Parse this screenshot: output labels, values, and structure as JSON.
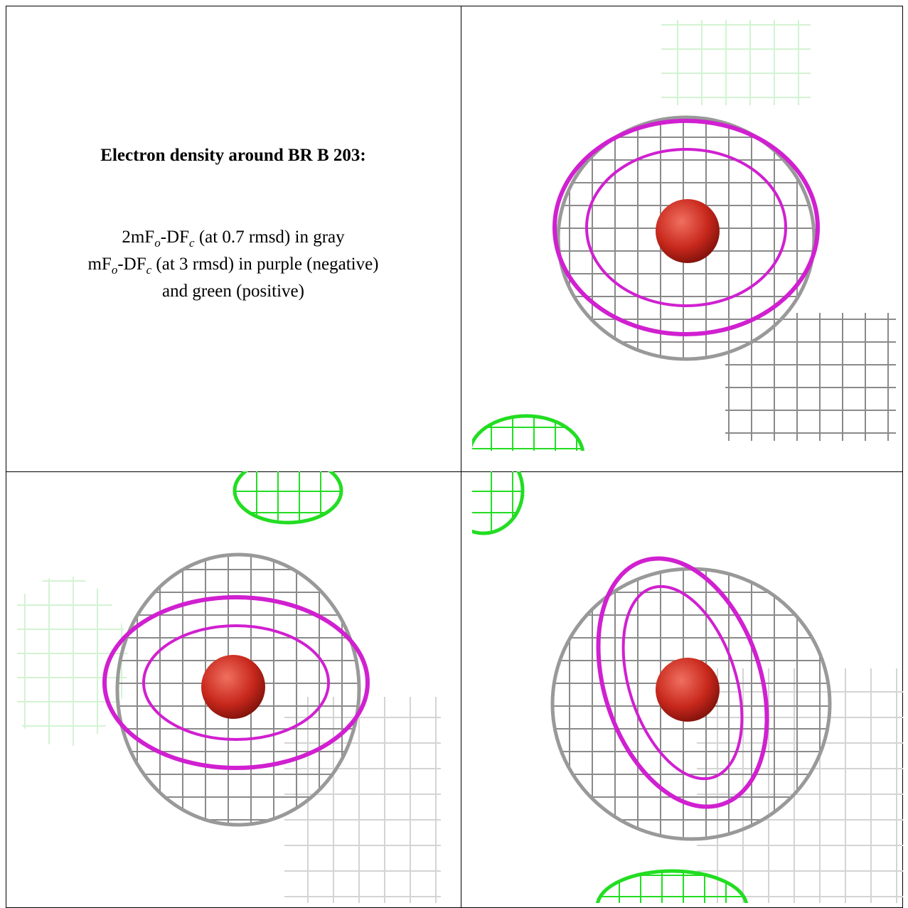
{
  "figure": {
    "title": "Electron density around BR B 203:",
    "legend_lines": [
      [
        "2mF",
        "o",
        "-DF",
        "c",
        " (at 0.7 rmsd) in gray"
      ],
      [
        "mF",
        "o",
        "-DF",
        "c",
        " (at 3 rmsd) in purple (negative)"
      ],
      [
        "and green (positive)"
      ]
    ]
  }
}
